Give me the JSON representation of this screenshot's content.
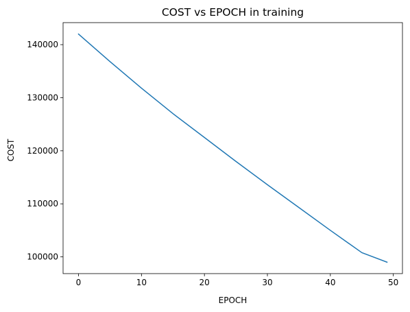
{
  "chart_data": {
    "type": "line",
    "title": "COST vs EPOCH in training",
    "xlabel": "EPOCH",
    "ylabel": "COST",
    "xlim": [
      -2.45,
      51.45
    ],
    "ylim": [
      96850,
      144150
    ],
    "xticks": [
      0,
      10,
      20,
      30,
      40,
      50
    ],
    "yticks": [
      100000,
      110000,
      120000,
      130000,
      140000
    ],
    "xtick_labels": [
      "0",
      "10",
      "20",
      "30",
      "40",
      "50"
    ],
    "ytick_labels": [
      "100000",
      "110000",
      "120000",
      "130000",
      "140000"
    ],
    "grid": false,
    "legend": "none",
    "series": [
      {
        "color": "#1f77b4",
        "x": [
          0,
          5,
          10,
          15,
          20,
          25,
          30,
          35,
          40,
          45,
          49
        ],
        "y": [
          142000,
          136800,
          131800,
          127000,
          122500,
          118000,
          113600,
          109300,
          105000,
          100800,
          99000
        ]
      }
    ]
  }
}
